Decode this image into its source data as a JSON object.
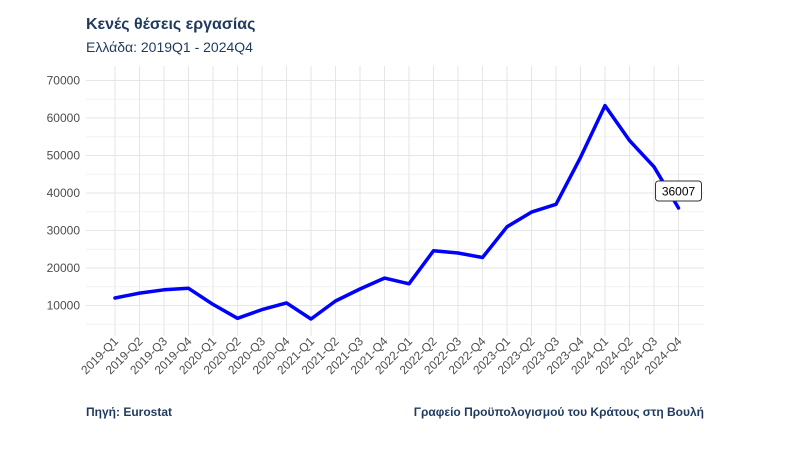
{
  "header": {
    "title": "Κενές θέσεις εργασίας",
    "subtitle": "Ελλάδα: 2019Q1 - 2024Q4"
  },
  "footer": {
    "source": "Πηγή: Eurostat",
    "credit": "Γραφείο Προϋπολογισμού του Κράτους στη Βουλή"
  },
  "colors": {
    "line": "#0000ff",
    "grid": "#e6e6e6",
    "text": "#1f3a5f"
  },
  "chart_data": {
    "type": "line",
    "title": "Κενές θέσεις εργασίας",
    "subtitle": "Ελλάδα: 2019Q1 - 2024Q4",
    "xlabel": "",
    "ylabel": "",
    "ylim": [
      0,
      70000
    ],
    "yticks": [
      10000,
      20000,
      30000,
      40000,
      50000,
      60000,
      70000
    ],
    "grid": true,
    "categories": [
      "2019-Q1",
      "2019-Q2",
      "2019-Q3",
      "2019-Q4",
      "2020-Q1",
      "2020-Q2",
      "2020-Q3",
      "2020-Q4",
      "2021-Q1",
      "2021-Q2",
      "2021-Q3",
      "2021-Q4",
      "2022-Q1",
      "2022-Q2",
      "2022-Q3",
      "2022-Q4",
      "2023-Q1",
      "2023-Q2",
      "2023-Q3",
      "2023-Q4",
      "2024-Q1",
      "2024-Q2",
      "2024-Q3",
      "2024-Q4"
    ],
    "series": [
      {
        "values": [
          12000,
          13300,
          14200,
          14600,
          10300,
          6600,
          8900,
          10700,
          6400,
          11200,
          14400,
          17300,
          15800,
          24600,
          24000,
          22800,
          31000,
          34900,
          37000,
          49500,
          63300,
          54000,
          47000,
          36007
        ]
      }
    ],
    "annotations": [
      {
        "category": "2024-Q4",
        "text": "36007"
      }
    ]
  }
}
